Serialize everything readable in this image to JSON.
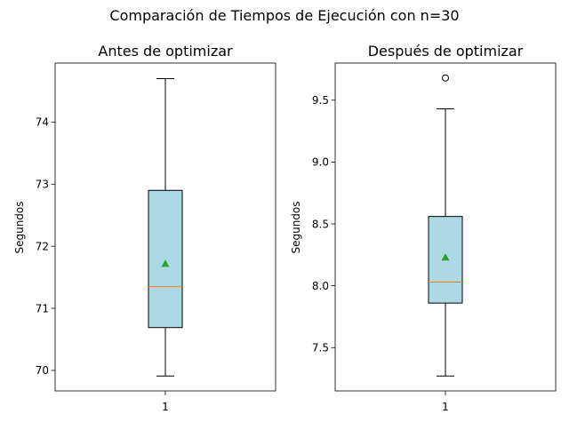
{
  "figure": {
    "suptitle": "Comparación de Tiempos de Ejecución con n=30"
  },
  "chart_data": [
    {
      "type": "box",
      "title": "Antes de optimizar",
      "xlabel": "",
      "ylabel": "Segundos",
      "categories": [
        "1"
      ],
      "ylim": [
        69.67,
        74.95
      ],
      "yticks": [
        70,
        71,
        72,
        73,
        74
      ],
      "ytick_labels": [
        "70",
        "71",
        "72",
        "73",
        "74"
      ],
      "box": {
        "whisker_low": 69.91,
        "q1": 70.69,
        "median": 71.35,
        "q3": 72.9,
        "whisker_high": 74.7,
        "mean": 71.72,
        "outliers": []
      },
      "grid": false,
      "colors": {
        "box_fill": "#add8e6",
        "median": "#ff7f0e",
        "mean": "#2ca02c",
        "outline": "#000000"
      }
    },
    {
      "type": "box",
      "title": "Después de optimizar",
      "xlabel": "",
      "ylabel": "Segundos",
      "categories": [
        "1"
      ],
      "ylim": [
        7.15,
        9.8
      ],
      "yticks": [
        7.5,
        8.0,
        8.5,
        9.0,
        9.5
      ],
      "ytick_labels": [
        "7.5",
        "8.0",
        "8.5",
        "9.0",
        "9.5"
      ],
      "box": {
        "whisker_low": 7.27,
        "q1": 7.86,
        "median": 8.03,
        "q3": 8.56,
        "whisker_high": 9.43,
        "mean": 8.23,
        "outliers": [
          9.68
        ]
      },
      "grid": false,
      "colors": {
        "box_fill": "#add8e6",
        "median": "#ff7f0e",
        "mean": "#2ca02c",
        "outline": "#000000"
      }
    }
  ]
}
